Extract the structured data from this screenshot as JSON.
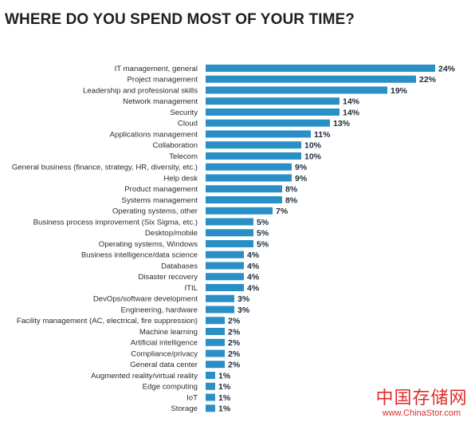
{
  "page": {
    "title": "WHERE DO YOU SPEND MOST OF YOUR TIME?",
    "watermark": {
      "text": "中国存储网",
      "url": "www.ChinaStor.com",
      "color": "#e02b2b"
    }
  },
  "colors": {
    "bar": "#2a8fc6",
    "value_text": "#1c2a3a",
    "label_text": "#2b2b2b"
  },
  "chart_data": {
    "type": "bar",
    "orientation": "horizontal",
    "title": "WHERE DO YOU SPEND MOST OF YOUR TIME?",
    "value_suffix": "%",
    "grid": false,
    "legend": "none",
    "xlim": [
      0,
      24
    ],
    "categories": [
      "IT management, general",
      "Project management",
      "Leadership and professional skills",
      "Network management",
      "Security",
      "Cloud",
      "Applications management",
      "Collaboration",
      "Telecom",
      "General business (finance, strategy, HR, diversity, etc.)",
      "Help desk",
      "Product management",
      "Systems management",
      "Operating systems, other",
      "Business process improvement (Six Sigma, etc.)",
      "Desktop/mobile",
      "Operating systems, Windows",
      "Business intelligence/data science",
      "Databases",
      "Disaster recovery",
      "ITIL",
      "DevOps/software development",
      "Engineering, hardware",
      "Facility management (AC, electrical, fire suppression)",
      "Machine learning",
      "Artificial intelligence",
      "Compliance/privacy",
      "General data center",
      "Augmented reality/virtual reality",
      "Edge computing",
      "IoT",
      "Storage"
    ],
    "values": [
      24,
      22,
      19,
      14,
      14,
      13,
      11,
      10,
      10,
      9,
      9,
      8,
      8,
      7,
      5,
      5,
      5,
      4,
      4,
      4,
      4,
      3,
      3,
      2,
      2,
      2,
      2,
      2,
      1,
      1,
      1,
      1
    ],
    "value_labels": [
      "24%",
      "22%",
      "19%",
      "14%",
      "14%",
      "13%",
      "11%",
      "10%",
      "10%",
      "9%",
      "9%",
      "8%",
      "8%",
      "7%",
      "5%",
      "5%",
      "5%",
      "4%",
      "4%",
      "4%",
      "4%",
      "3%",
      "3%",
      "2%",
      "2%",
      "2%",
      "2%",
      "2%",
      "1%",
      "1%",
      "1%",
      "1%"
    ]
  }
}
